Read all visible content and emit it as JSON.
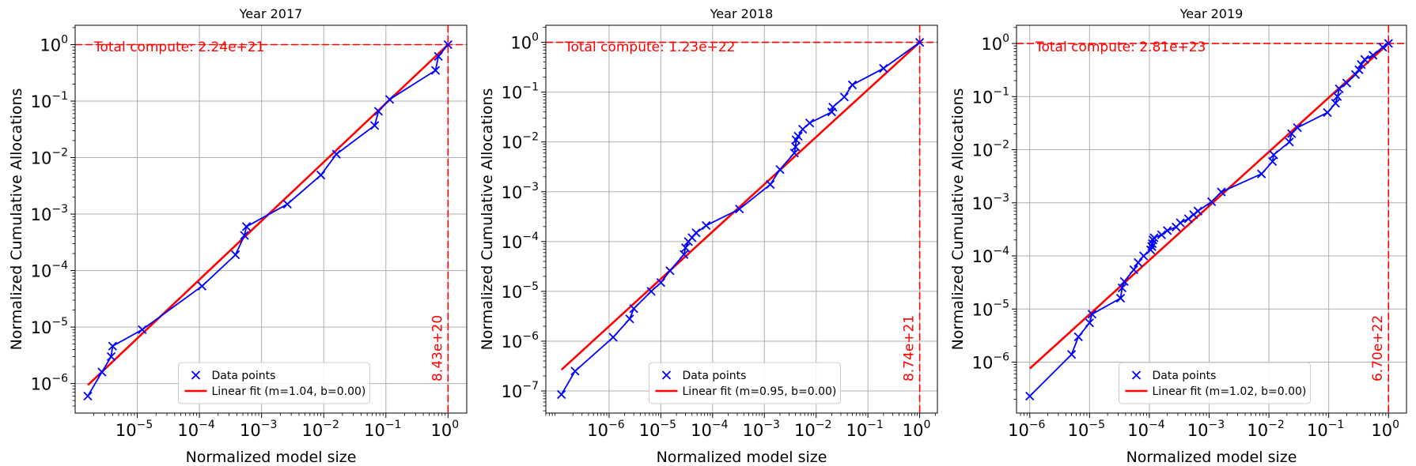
{
  "chart_data": [
    {
      "type": "scatter",
      "title": "Year 2017",
      "xlabel": "Normalized model size",
      "ylabel": "Normalized Cumulative Allocations",
      "xscale": "log",
      "yscale": "log",
      "xlim": [
        1e-06,
        2
      ],
      "ylim": [
        3e-07,
        2.2
      ],
      "xticks": [
        {
          "base": "10",
          "exp": "−5",
          "v": 1e-05
        },
        {
          "base": "10",
          "exp": "−4",
          "v": 0.0001
        },
        {
          "base": "10",
          "exp": "−3",
          "v": 0.001
        },
        {
          "base": "10",
          "exp": "−2",
          "v": 0.01
        },
        {
          "base": "10",
          "exp": "−1",
          "v": 0.1
        },
        {
          "base": "10",
          "exp": "0",
          "v": 1
        }
      ],
      "yticks": [
        {
          "base": "10",
          "exp": "−6",
          "v": 1e-06
        },
        {
          "base": "10",
          "exp": "−5",
          "v": 1e-05
        },
        {
          "base": "10",
          "exp": "−4",
          "v": 0.0001
        },
        {
          "base": "10",
          "exp": "−3",
          "v": 0.001
        },
        {
          "base": "10",
          "exp": "−2",
          "v": 0.01
        },
        {
          "base": "10",
          "exp": "−1",
          "v": 0.1
        },
        {
          "base": "10",
          "exp": "0",
          "v": 1
        }
      ],
      "grid": true,
      "legend_position": "bottom-center",
      "series": [
        {
          "name": "Data points",
          "color": "#0000ff",
          "x": [
            1.6e-06,
            2.7e-06,
            3.8e-06,
            4e-06,
            1.2e-05,
            0.00011,
            0.00038,
            0.00053,
            0.00057,
            0.0026,
            0.009,
            0.016,
            0.066,
            0.076,
            0.115,
            0.63,
            0.7,
            1.0
          ],
          "y": [
            6e-07,
            1.6e-06,
            3e-06,
            4.6e-06,
            9e-06,
            5.3e-05,
            0.00019,
            0.00042,
            0.0006,
            0.0015,
            0.0049,
            0.0115,
            0.037,
            0.066,
            0.107,
            0.35,
            0.62,
            1.0
          ]
        },
        {
          "name": "Linear fit (m=1.04, b=0.00)",
          "color": "#ff0000",
          "m": 1.04,
          "b": 0.0,
          "x_range": [
            1.6e-06,
            1.0
          ]
        }
      ],
      "annotations": {
        "total_compute": "Total compute: 2.24e+21",
        "vline_label": "8.43e+20",
        "vline_x": 1.0,
        "hline_y": 1.0,
        "color": "#ff0000"
      }
    },
    {
      "type": "scatter",
      "title": "Year 2018",
      "xlabel": "Normalized model size",
      "ylabel": "Normalized Cumulative Allocations",
      "xscale": "log",
      "yscale": "log",
      "xlim": [
        6e-08,
        2.2
      ],
      "ylim": [
        3.6e-08,
        2.2
      ],
      "xticks": [
        {
          "base": "10",
          "exp": "−6",
          "v": 1e-06
        },
        {
          "base": "10",
          "exp": "−5",
          "v": 1e-05
        },
        {
          "base": "10",
          "exp": "−4",
          "v": 0.0001
        },
        {
          "base": "10",
          "exp": "−3",
          "v": 0.001
        },
        {
          "base": "10",
          "exp": "−2",
          "v": 0.01
        },
        {
          "base": "10",
          "exp": "−1",
          "v": 0.1
        },
        {
          "base": "10",
          "exp": "0",
          "v": 1
        }
      ],
      "yticks": [
        {
          "base": "10",
          "exp": "−7",
          "v": 1e-07
        },
        {
          "base": "10",
          "exp": "−6",
          "v": 1e-06
        },
        {
          "base": "10",
          "exp": "−5",
          "v": 1e-05
        },
        {
          "base": "10",
          "exp": "−4",
          "v": 0.0001
        },
        {
          "base": "10",
          "exp": "−3",
          "v": 0.001
        },
        {
          "base": "10",
          "exp": "−2",
          "v": 0.01
        },
        {
          "base": "10",
          "exp": "−1",
          "v": 0.1
        },
        {
          "base": "10",
          "exp": "0",
          "v": 1
        }
      ],
      "grid": true,
      "legend_position": "bottom-center",
      "series": [
        {
          "name": "Data points",
          "color": "#0000ff",
          "x": [
            1.2e-07,
            2.2e-07,
            1.2e-06,
            2.5e-06,
            3e-06,
            6.5e-06,
            1e-05,
            1.5e-05,
            2.8e-05,
            3e-05,
            3.4e-05,
            4e-05,
            4.8e-05,
            7.5e-05,
            0.00033,
            0.0013,
            0.002,
            0.0038,
            0.004,
            0.0041,
            0.0045,
            0.0055,
            0.0075,
            0.02,
            0.021,
            0.035,
            0.05,
            0.2,
            1.0
          ],
          "y": [
            8.5e-08,
            2.5e-07,
            1.2e-06,
            2.8e-06,
            4.5e-06,
            1e-05,
            1.5e-05,
            2.6e-05,
            5.5e-05,
            7.5e-05,
            0.0001,
            0.00012,
            0.00015,
            0.00021,
            0.00045,
            0.0014,
            0.0028,
            0.006,
            0.008,
            0.011,
            0.013,
            0.018,
            0.024,
            0.04,
            0.05,
            0.08,
            0.14,
            0.3,
            1.0
          ]
        },
        {
          "name": "Linear fit (m=0.95, b=0.00)",
          "color": "#ff0000",
          "m": 0.95,
          "b": 0.0,
          "x_range": [
            1.2e-07,
            1.0
          ]
        }
      ],
      "annotations": {
        "total_compute": "Total compute: 1.23e+22",
        "vline_label": "8.74e+21",
        "vline_x": 1.0,
        "hline_y": 1.0,
        "color": "#ff0000"
      }
    },
    {
      "type": "scatter",
      "title": "Year 2019",
      "xlabel": "Normalized model size",
      "ylabel": "Normalized Cumulative Allocations",
      "xscale": "log",
      "yscale": "log",
      "xlim": [
        6e-07,
        2
      ],
      "ylim": [
        1.1e-07,
        2.2
      ],
      "xticks": [
        {
          "base": "10",
          "exp": "−6",
          "v": 1e-06
        },
        {
          "base": "10",
          "exp": "−5",
          "v": 1e-05
        },
        {
          "base": "10",
          "exp": "−4",
          "v": 0.0001
        },
        {
          "base": "10",
          "exp": "−3",
          "v": 0.001
        },
        {
          "base": "10",
          "exp": "−2",
          "v": 0.01
        },
        {
          "base": "10",
          "exp": "−1",
          "v": 0.1
        },
        {
          "base": "10",
          "exp": "0",
          "v": 1
        }
      ],
      "yticks": [
        {
          "base": "10",
          "exp": "−6",
          "v": 1e-06
        },
        {
          "base": "10",
          "exp": "−5",
          "v": 1e-05
        },
        {
          "base": "10",
          "exp": "−4",
          "v": 0.0001
        },
        {
          "base": "10",
          "exp": "−3",
          "v": 0.001
        },
        {
          "base": "10",
          "exp": "−2",
          "v": 0.01
        },
        {
          "base": "10",
          "exp": "−1",
          "v": 0.1
        },
        {
          "base": "10",
          "exp": "0",
          "v": 1
        }
      ],
      "grid": true,
      "legend_position": "bottom-center",
      "series": [
        {
          "name": "Data points",
          "color": "#0000ff",
          "x": [
            1e-06,
            5e-06,
            6.5e-06,
            1e-05,
            1.1e-05,
            3.3e-05,
            3.5e-05,
            3.8e-05,
            5.5e-05,
            6.5e-05,
            8e-05,
            0.000105,
            0.00011,
            0.000112,
            0.000115,
            0.00012,
            0.00016,
            0.0002,
            0.00028,
            0.00033,
            0.00045,
            0.00055,
            0.00065,
            0.0011,
            0.0016,
            0.0075,
            0.0115,
            0.012,
            0.022,
            0.024,
            0.03,
            0.095,
            0.13,
            0.14,
            0.15,
            0.2,
            0.28,
            0.32,
            0.35,
            0.4,
            0.55,
            0.8,
            1.0
          ],
          "y": [
            2.3e-07,
            1.4e-06,
            3e-06,
            5.5e-06,
            8e-06,
            1.6e-05,
            2.5e-05,
            3.3e-05,
            5.5e-05,
            7.5e-05,
            0.0001,
            0.00013,
            0.00015,
            0.00017,
            0.0002,
            0.00022,
            0.00025,
            0.0003,
            0.00035,
            0.00042,
            0.0005,
            0.0006,
            0.0007,
            0.00105,
            0.0016,
            0.0035,
            0.006,
            0.008,
            0.014,
            0.02,
            0.026,
            0.05,
            0.075,
            0.1,
            0.14,
            0.18,
            0.26,
            0.32,
            0.4,
            0.5,
            0.6,
            0.85,
            1.0
          ]
        },
        {
          "name": "Linear fit (m=1.02, b=0.00)",
          "color": "#ff0000",
          "m": 1.02,
          "b": 0.0,
          "x_range": [
            1e-06,
            1.0
          ]
        }
      ],
      "annotations": {
        "total_compute": "Total compute: 2.81e+23",
        "vline_label": "6.70e+22",
        "vline_x": 1.0,
        "hline_y": 1.0,
        "color": "#ff0000"
      }
    }
  ]
}
